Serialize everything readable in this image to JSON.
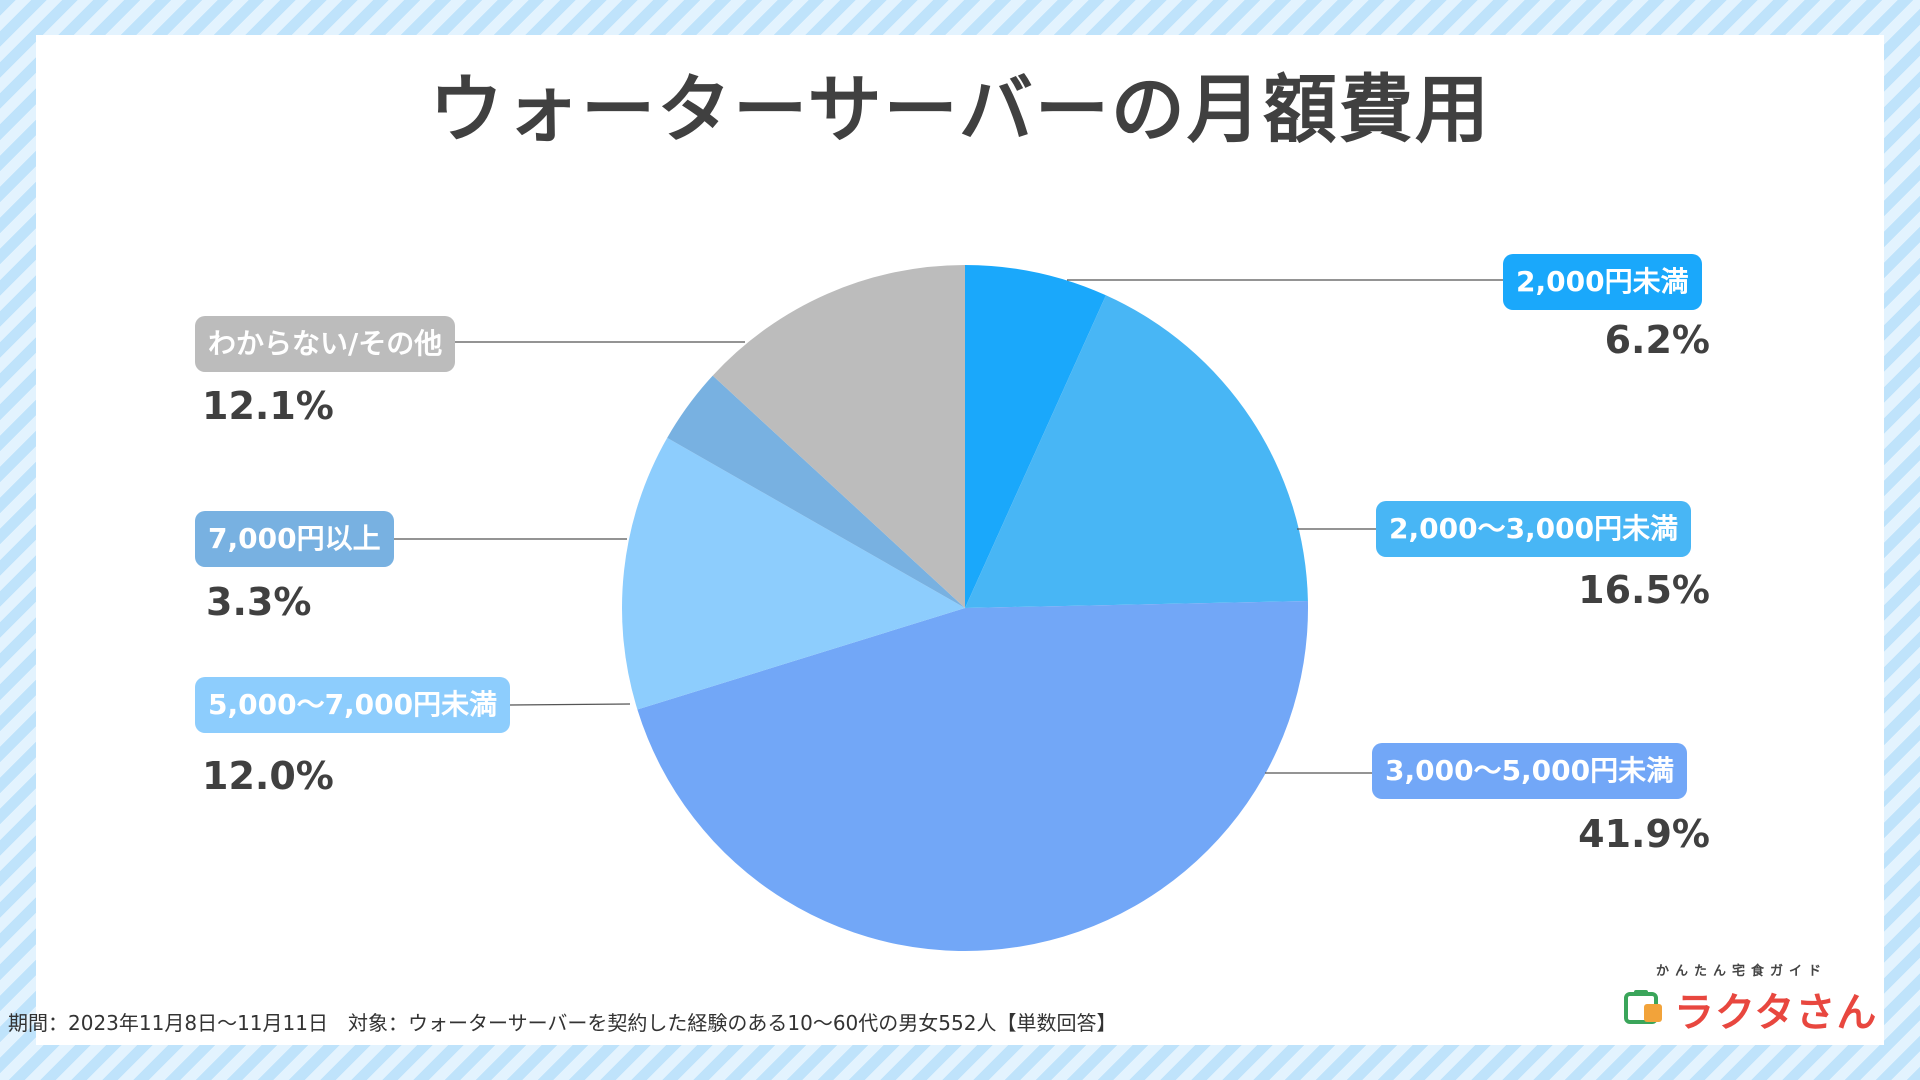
{
  "title": "ウォーターサーバーの月額費用",
  "footer": "期間：2023年11月8日〜11月11日　対象：ウォーターサーバーを契約した経験のある10〜60代の男女552人【単数回答】",
  "logo": {
    "tagline": "かんたん宅食ガイド",
    "name": "ラクタさん"
  },
  "chart_data": {
    "type": "pie",
    "categories": [
      "2,000円未満",
      "2,000〜3,000円未満",
      "3,000〜5,000円未満",
      "5,000〜7,000円未満",
      "7,000円以上",
      "わからない/その他"
    ],
    "values": [
      6.2,
      16.5,
      41.9,
      12.0,
      3.3,
      12.1
    ],
    "value_labels": [
      "6.2%",
      "16.5%",
      "41.9%",
      "12.0%",
      "3.3%",
      "12.1%"
    ],
    "colors": [
      "#1aa8fb",
      "#48b6f5",
      "#72a7f7",
      "#8dcdfd",
      "#78b1e1",
      "#bcbcbc"
    ],
    "start_angle": "12 o'clock",
    "direction": "clockwise"
  }
}
